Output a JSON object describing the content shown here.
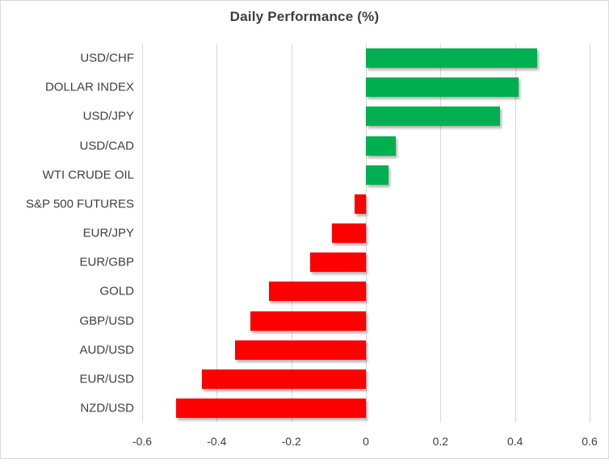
{
  "chart_data": {
    "type": "bar",
    "orientation": "horizontal",
    "title": "Daily Performance (%)",
    "categories": [
      "USD/CHF",
      "DOLLAR INDEX",
      "USD/JPY",
      "USD/CAD",
      "WTI CRUDE OIL",
      "S&P 500 FUTURES",
      "EUR/JPY",
      "EUR/GBP",
      "GOLD",
      "GBP/USD",
      "AUD/USD",
      "EUR/USD",
      "NZD/USD"
    ],
    "values": [
      0.46,
      0.41,
      0.36,
      0.08,
      0.06,
      -0.03,
      -0.09,
      -0.15,
      -0.26,
      -0.31,
      -0.35,
      -0.44,
      -0.51
    ],
    "xlim": [
      -0.6,
      0.6
    ],
    "xticks": [
      -0.6,
      -0.4,
      -0.2,
      0,
      0.2,
      0.4,
      0.6
    ],
    "xtick_labels": [
      "-0.6",
      "-0.4",
      "-0.2",
      "0",
      "0.2",
      "0.4",
      "0.6"
    ],
    "grid": true,
    "legend": "none",
    "colors": {
      "positive": "#00B050",
      "negative": "#FF0000",
      "gridline": "#D9D9D9",
      "text": "#404040",
      "title": "#3F3F3F"
    }
  }
}
